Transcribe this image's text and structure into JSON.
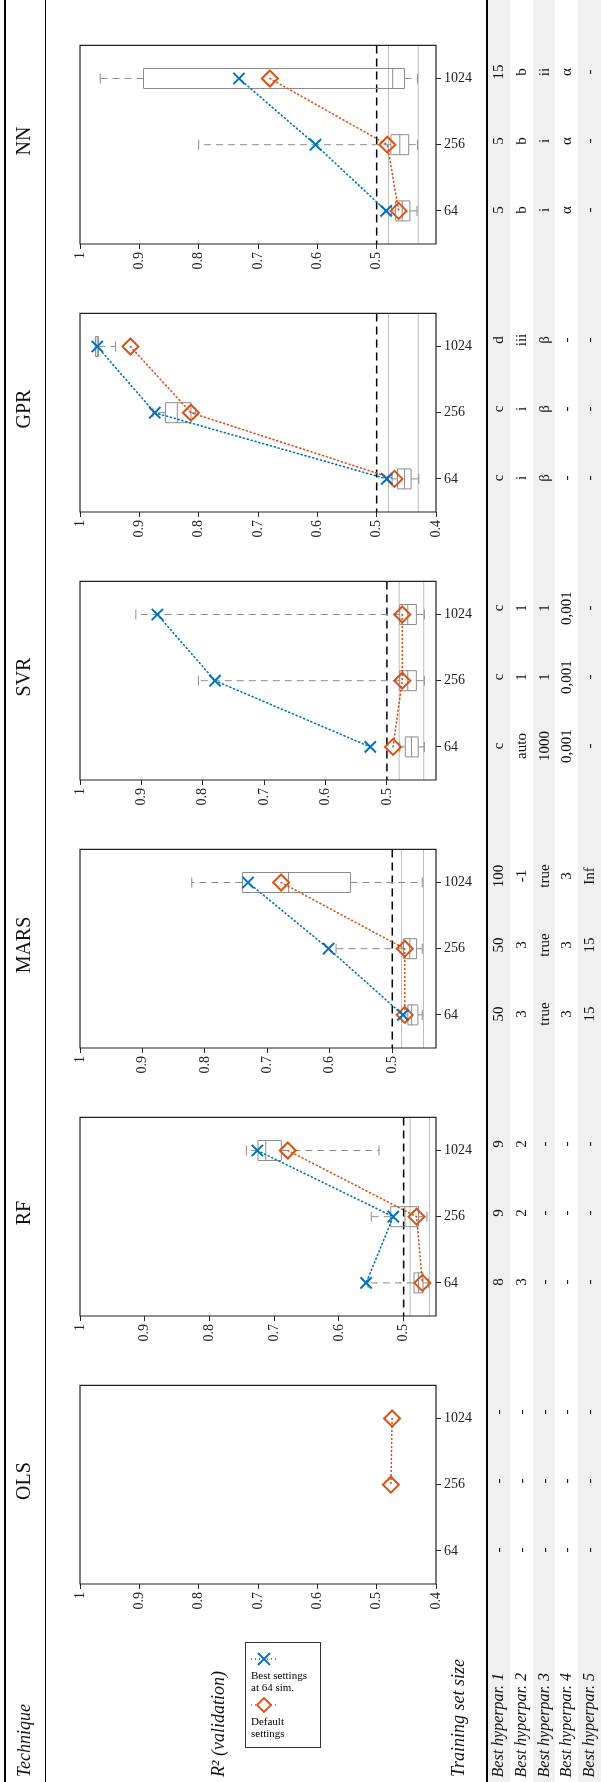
{
  "chart_data": [
    {
      "type": "other",
      "title": "Technique",
      "ylabel": "R² (validation)",
      "xlabel": "Training set size",
      "annotations": [
        "Best hyperpar. 1",
        "Best hyperpar. 2",
        "Best hyperpar. 3",
        "Best hyperpar. 4",
        "Best hyperpar. 5"
      ]
    },
    {
      "type": "line",
      "orientation": "horizontal",
      "title": "OLS",
      "categories": [
        "1024",
        "256",
        "64"
      ],
      "xlim": [
        1,
        0.4
      ],
      "xticks": [
        1,
        0.9,
        0.8,
        0.7,
        0.6,
        0.5,
        0.4
      ],
      "legend": "bottom",
      "series": [
        {
          "type": "line",
          "name": "Best settings at 64 sim.",
          "color": "#0072bd",
          "marker": "cross",
          "line_style": "dotted",
          "values": [
            null,
            null,
            null
          ]
        },
        {
          "type": "line",
          "name": "Default settings",
          "color": "#d95319",
          "marker": "diamond",
          "line_style": "dotted",
          "values": [
            0.474,
            0.476,
            null
          ]
        }
      ],
      "annotations": [
        "-",
        "-",
        "-",
        "-",
        "-",
        "-",
        "-",
        "-",
        "-",
        "-",
        "-",
        "-",
        "-",
        "-",
        "-"
      ]
    },
    {
      "type": "line",
      "orientation": "horizontal",
      "title": "RF",
      "categories": [
        "1024",
        "256",
        "64"
      ],
      "xlim": [
        1,
        0.45
      ],
      "xticks": [
        1,
        0.9,
        0.8,
        0.7,
        0.6,
        0.5
      ],
      "series": [
        {
          "type": "box",
          "color": "#8c8c8c",
          "boxes": [
            {
              "low": 0.538,
              "q1": 0.689,
              "median": 0.713,
              "q3": 0.725,
              "high": 0.743
            },
            {
              "low": 0.464,
              "q1": 0.477,
              "median": 0.498,
              "q3": 0.52,
              "high": 0.55
            },
            {
              "low": 0.462,
              "q1": 0.47,
              "median": 0.477,
              "q3": 0.484,
              "high": 0.555
            }
          ]
        },
        {
          "type": "line",
          "color": "#0072bd",
          "marker": "cross",
          "line_style": "dotted",
          "values": [
            0.726,
            0.516,
            0.558
          ]
        },
        {
          "type": "line",
          "color": "#d95319",
          "marker": "diamond",
          "line_style": "dotted",
          "values": [
            0.679,
            0.48,
            0.471
          ]
        }
      ],
      "ref_lines": [
        {
          "axis": "x",
          "value": 0.5,
          "color": "#000000",
          "line_style": "dashed"
        },
        {
          "axis": "x",
          "value": 0.49,
          "color": "#bdbdbd",
          "line_style": "solid"
        },
        {
          "axis": "x",
          "value": 0.46,
          "color": "#bdbdbd",
          "line_style": "solid"
        }
      ],
      "annotations": [
        "9",
        "9",
        "8",
        "2",
        "2",
        "3",
        "-",
        "-",
        "-",
        "-",
        "-",
        "-",
        "-",
        "-",
        "-"
      ]
    },
    {
      "type": "line",
      "orientation": "horizontal",
      "title": "MARS",
      "categories": [
        "1024",
        "256",
        "64"
      ],
      "xlim": [
        1,
        0.43
      ],
      "xticks": [
        1,
        0.9,
        0.8,
        0.7,
        0.6,
        0.5
      ],
      "series": [
        {
          "type": "box",
          "color": "#8c8c8c",
          "boxes": [
            {
              "low": 0.452,
              "q1": 0.567,
              "median": 0.666,
              "q3": 0.74,
              "high": 0.821
            },
            {
              "low": 0.452,
              "q1": 0.461,
              "median": 0.472,
              "q3": 0.482,
              "high": 0.59
            },
            {
              "low": 0.452,
              "q1": 0.459,
              "median": 0.469,
              "q3": 0.475,
              "high": 0.485
            }
          ]
        },
        {
          "type": "line",
          "color": "#0072bd",
          "marker": "cross",
          "line_style": "dotted",
          "values": [
            0.731,
            0.602,
            0.483
          ]
        },
        {
          "type": "line",
          "color": "#d95319",
          "marker": "diamond",
          "line_style": "dotted",
          "values": [
            0.678,
            0.48,
            0.48
          ]
        }
      ],
      "ref_lines": [
        {
          "axis": "x",
          "value": 0.5,
          "color": "#000000",
          "line_style": "dashed"
        },
        {
          "axis": "x",
          "value": 0.485,
          "color": "#bdbdbd",
          "line_style": "solid"
        },
        {
          "axis": "x",
          "value": 0.45,
          "color": "#bdbdbd",
          "line_style": "solid"
        }
      ],
      "annotations": [
        "100",
        "50",
        "50",
        "-1",
        "3",
        "3",
        "true",
        "true",
        "true",
        "3",
        "3",
        "3",
        "Inf",
        "15",
        "15"
      ]
    },
    {
      "type": "line",
      "orientation": "horizontal",
      "title": "SVR",
      "categories": [
        "1024",
        "256",
        "64"
      ],
      "xlim": [
        1,
        0.42
      ],
      "xticks": [
        1,
        0.9,
        0.8,
        0.7,
        0.6,
        0.5
      ],
      "series": [
        {
          "type": "box",
          "color": "#8c8c8c",
          "boxes": [
            {
              "low": 0.439,
              "q1": 0.452,
              "median": 0.466,
              "q3": 0.479,
              "high": 0.909
            },
            {
              "low": 0.439,
              "q1": 0.452,
              "median": 0.466,
              "q3": 0.479,
              "high": 0.807
            },
            {
              "low": 0.439,
              "q1": 0.449,
              "median": 0.46,
              "q3": 0.47,
              "high": 0.479
            }
          ]
        },
        {
          "type": "line",
          "color": "#0072bd",
          "marker": "cross",
          "line_style": "dotted",
          "values": [
            0.874,
            0.78,
            0.527
          ]
        },
        {
          "type": "line",
          "color": "#d95319",
          "marker": "diamond",
          "line_style": "dotted",
          "values": [
            0.475,
            0.475,
            0.49
          ]
        }
      ],
      "ref_lines": [
        {
          "axis": "x",
          "value": 0.5,
          "color": "#000000",
          "line_style": "dashed"
        },
        {
          "axis": "x",
          "value": 0.48,
          "color": "#bdbdbd",
          "line_style": "solid"
        },
        {
          "axis": "x",
          "value": 0.44,
          "color": "#bdbdbd",
          "line_style": "solid"
        }
      ],
      "annotations": [
        "c",
        "c",
        "c",
        "1",
        "1",
        "auto",
        "1",
        "1",
        "1000",
        "0,001",
        "0,001",
        "0,001",
        "-",
        "-",
        "-"
      ]
    },
    {
      "type": "line",
      "orientation": "horizontal",
      "title": "GPR",
      "categories": [
        "1024",
        "256",
        "64"
      ],
      "xlim": [
        1,
        0.4
      ],
      "xticks": [
        1,
        0.9,
        0.8,
        0.7,
        0.6,
        0.5,
        0.4
      ],
      "series": [
        {
          "type": "box",
          "color": "#8c8c8c",
          "boxes": [
            {
              "low": 0.94,
              "q1": 0.969,
              "median": 0.971,
              "q3": 0.974,
              "high": 0.974
            },
            {
              "low": 0.805,
              "q1": 0.813,
              "median": 0.836,
              "q3": 0.856,
              "high": 0.877
            },
            {
              "low": 0.429,
              "q1": 0.442,
              "median": 0.453,
              "q3": 0.465,
              "high": 0.474
            }
          ]
        },
        {
          "type": "line",
          "color": "#0072bd",
          "marker": "cross",
          "line_style": "dotted",
          "values": [
            0.971,
            0.874,
            0.483
          ]
        },
        {
          "type": "line",
          "color": "#d95319",
          "marker": "diamond",
          "line_style": "dotted",
          "values": [
            0.915,
            0.813,
            0.47
          ]
        }
      ],
      "ref_lines": [
        {
          "axis": "x",
          "value": 0.5,
          "color": "#000000",
          "line_style": "dashed"
        },
        {
          "axis": "x",
          "value": 0.48,
          "color": "#bdbdbd",
          "line_style": "solid"
        },
        {
          "axis": "x",
          "value": 0.43,
          "color": "#bdbdbd",
          "line_style": "solid"
        }
      ],
      "annotations": [
        "d",
        "c",
        "c",
        "iii",
        "i",
        "i",
        "β",
        "β",
        "β",
        "-",
        "-",
        "-",
        "-",
        "-",
        "-"
      ]
    },
    {
      "type": "line",
      "orientation": "horizontal",
      "title": "NN",
      "categories": [
        "1024",
        "256",
        "64"
      ],
      "xlim": [
        1,
        0.4
      ],
      "xticks": [
        1,
        0.9,
        0.8,
        0.7,
        0.6,
        0.5
      ],
      "series": [
        {
          "type": "box",
          "color": "#8c8c8c",
          "boxes": [
            {
              "low": 0.431,
              "q1": 0.453,
              "median": 0.473,
              "q3": 0.893,
              "high": 0.966
            },
            {
              "low": 0.431,
              "q1": 0.446,
              "median": 0.461,
              "q3": 0.476,
              "high": 0.8
            },
            {
              "low": 0.432,
              "q1": 0.444,
              "median": 0.457,
              "q3": 0.468,
              "high": 0.475
            }
          ]
        },
        {
          "type": "line",
          "color": "#0072bd",
          "marker": "cross",
          "line_style": "dotted",
          "values": [
            0.732,
            0.603,
            0.484
          ]
        },
        {
          "type": "line",
          "color": "#d95319",
          "marker": "diamond",
          "line_style": "dotted",
          "values": [
            0.68,
            0.482,
            0.463
          ]
        }
      ],
      "ref_lines": [
        {
          "axis": "x",
          "value": 0.5,
          "color": "#000000",
          "line_style": "dashed"
        },
        {
          "axis": "x",
          "value": 0.48,
          "color": "#bdbdbd",
          "line_style": "solid"
        },
        {
          "axis": "x",
          "value": 0.43,
          "color": "#bdbdbd",
          "line_style": "solid"
        }
      ],
      "annotations": [
        "15",
        "5",
        "5",
        "b",
        "b",
        "b",
        "ii",
        "i",
        "i",
        "α",
        "α",
        "α",
        "-",
        "-",
        "-"
      ]
    }
  ]
}
